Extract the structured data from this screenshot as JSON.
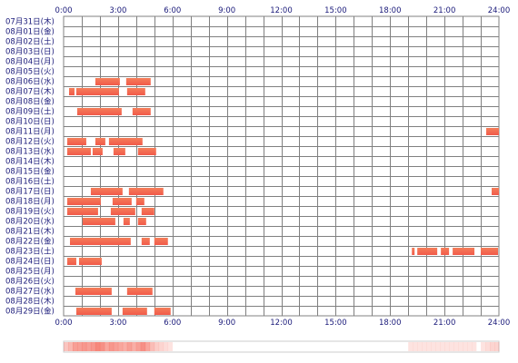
{
  "chart_data": {
    "type": "timeline",
    "x_unit": "hour of day",
    "x_range": [
      0,
      24
    ],
    "hour_ticks": [
      "0:00",
      "3:00",
      "6:00",
      "9:00",
      "12:00",
      "15:00",
      "18:00",
      "21:00",
      "24:00"
    ],
    "days": [
      "07月31日(木)",
      "08月01日(金)",
      "08月02日(土)",
      "08月03日(日)",
      "08月04日(月)",
      "08月05日(火)",
      "08月06日(水)",
      "08月07日(木)",
      "08月08日(金)",
      "08月09日(土)",
      "08月10日(日)",
      "08月11日(月)",
      "08月12日(火)",
      "08月13日(水)",
      "08月14日(木)",
      "08月15日(金)",
      "08月16日(土)",
      "08月17日(日)",
      "08月18日(月)",
      "08月19日(火)",
      "08月20日(水)",
      "08月21日(木)",
      "08月22日(金)",
      "08月23日(土)",
      "08月24日(日)",
      "08月25日(月)",
      "08月26日(火)",
      "08月27日(水)",
      "08月28日(木)",
      "08月29日(金)"
    ],
    "sessions": [
      [],
      [],
      [],
      [],
      [],
      [],
      [
        [
          1.75,
          3.1
        ],
        [
          3.45,
          4.8
        ]
      ],
      [
        [
          0.3,
          0.6
        ],
        [
          0.7,
          3.05
        ],
        [
          3.5,
          4.5
        ]
      ],
      [],
      [
        [
          0.75,
          3.2
        ],
        [
          3.8,
          4.8
        ]
      ],
      [],
      [
        [
          23.3,
          24.0
        ]
      ],
      [
        [
          0.2,
          1.25
        ],
        [
          1.75,
          2.3
        ],
        [
          2.5,
          4.35
        ]
      ],
      [
        [
          0.2,
          1.5
        ],
        [
          1.6,
          2.15
        ],
        [
          2.75,
          3.4
        ],
        [
          4.1,
          5.1
        ]
      ],
      [],
      [],
      [],
      [
        [
          1.5,
          3.25
        ],
        [
          3.6,
          5.5
        ],
        [
          23.6,
          24.0
        ]
      ],
      [
        [
          0.2,
          2.05
        ],
        [
          2.7,
          3.75
        ],
        [
          4.0,
          4.45
        ]
      ],
      [
        [
          0.2,
          1.9
        ],
        [
          2.6,
          3.95
        ],
        [
          4.3,
          5.0
        ]
      ],
      [
        [
          1.05,
          2.85
        ],
        [
          3.3,
          3.65
        ],
        [
          4.1,
          4.55
        ]
      ],
      [],
      [
        [
          0.35,
          3.7
        ],
        [
          4.3,
          4.75
        ],
        [
          5.0,
          5.75
        ]
      ],
      [
        [
          19.2,
          19.35
        ],
        [
          19.5,
          20.6
        ],
        [
          20.8,
          21.25
        ],
        [
          21.45,
          22.65
        ],
        [
          23.0,
          23.95
        ],
        [
          24.0,
          24.0
        ]
      ],
      [
        [
          0.2,
          0.7
        ],
        [
          0.85,
          2.1
        ]
      ],
      [],
      [],
      [
        [
          0.65,
          2.65
        ],
        [
          3.5,
          4.9
        ]
      ],
      [],
      [
        [
          0.7,
          2.65
        ],
        [
          3.25,
          4.6
        ],
        [
          5.0,
          5.9
        ]
      ]
    ],
    "colors": {
      "bar": "#f25a4a",
      "bar_light": "#f47f5a",
      "grid": "#808080",
      "label": "#1a1a7a"
    }
  }
}
